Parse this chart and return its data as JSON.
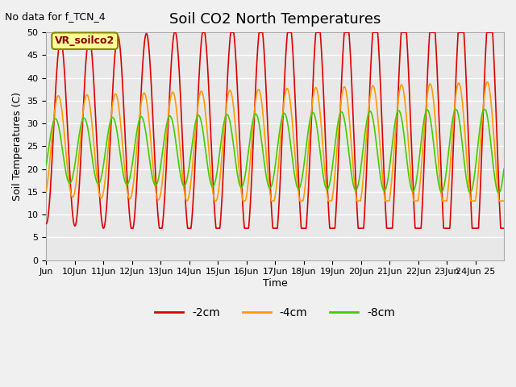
{
  "title": "Soil CO2 North Temperatures",
  "subtitle": "No data for f_TCN_4",
  "ylabel": "Soil Temperatures (C)",
  "xlabel": "Time",
  "annotation_box": "VR_soilco2",
  "xlim": [
    9,
    25
  ],
  "ylim": [
    0,
    50
  ],
  "yticks": [
    0,
    5,
    10,
    15,
    20,
    25,
    30,
    35,
    40,
    45,
    50
  ],
  "xtick_positions": [
    9,
    10,
    11,
    12,
    13,
    14,
    15,
    16,
    17,
    18,
    19,
    20,
    21,
    22,
    23,
    24
  ],
  "xtick_labels": [
    "Jun",
    "10Jun",
    "11Jun",
    "12Jun",
    "13Jun",
    "14Jun",
    "15Jun",
    "16Jun",
    "17Jun",
    "18Jun",
    "19Jun",
    "20Jun",
    "21Jun",
    "22Jun",
    "23Jun",
    "24Jun 25"
  ],
  "bg_color": "#e8e8e8",
  "grid_color": "#ffffff",
  "line_colors": {
    "2cm": "#dd0000",
    "4cm": "#ff9900",
    "8cm": "#44cc00"
  },
  "legend_labels": [
    "-2cm",
    "-4cm",
    "-8cm"
  ],
  "annotation_box_color": "#ffff99",
  "annotation_box_edge": "#888800"
}
